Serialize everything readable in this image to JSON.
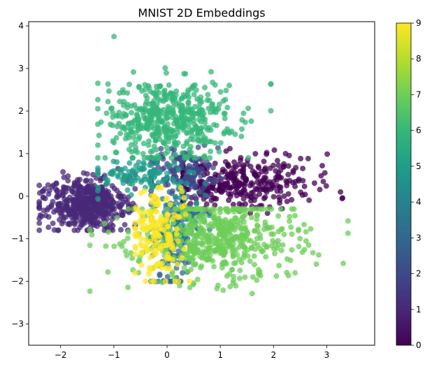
{
  "chart_data": [
    {
      "type": "scatter",
      "title": "MNIST 2D Embeddings",
      "xlabel": "",
      "ylabel": "",
      "xlim": [
        -2.6,
        3.9
      ],
      "ylim": [
        -3.5,
        4.1
      ],
      "xticks": [
        -2,
        -1,
        0,
        1,
        2,
        3
      ],
      "yticks": [
        -3,
        -2,
        -1,
        0,
        1,
        2,
        3,
        4
      ],
      "grid": false,
      "marker_alpha": 0.75,
      "colormap": "viridis",
      "clusters": [
        {
          "label": 0,
          "center": [
            1.2,
            0.3
          ],
          "spread": [
            0.75,
            0.3
          ],
          "approx_count": 700,
          "x_range": [
            0.3,
            3.6
          ],
          "y_range": [
            -0.4,
            1.25
          ]
        },
        {
          "label": 1,
          "center": [
            -1.5,
            -0.2
          ],
          "spread": [
            0.35,
            0.28
          ],
          "approx_count": 900,
          "x_range": [
            -2.4,
            -0.6
          ],
          "y_range": [
            -0.8,
            0.65
          ]
        },
        {
          "label": 2,
          "center": [
            0.3,
            0.6
          ],
          "spread": [
            0.35,
            0.25
          ],
          "approx_count": 250,
          "x_range": [
            -0.3,
            1.0
          ],
          "y_range": [
            0.0,
            1.2
          ]
        },
        {
          "label": 3,
          "center": [
            0.1,
            -1.0
          ],
          "spread": [
            0.2,
            0.5
          ],
          "approx_count": 250,
          "x_range": [
            -0.3,
            0.6
          ],
          "y_range": [
            -2.0,
            0.1
          ]
        },
        {
          "label": 4,
          "center": [
            0.3,
            -0.4
          ],
          "spread": [
            0.25,
            0.3
          ],
          "approx_count": 120,
          "x_range": [
            -0.2,
            0.8
          ],
          "y_range": [
            -1.0,
            0.3
          ]
        },
        {
          "label": 5,
          "center": [
            -0.5,
            0.5
          ],
          "spread": [
            0.4,
            0.2
          ],
          "approx_count": 200,
          "x_range": [
            -1.3,
            0.7
          ],
          "y_range": [
            -0.3,
            0.9
          ]
        },
        {
          "label": 6,
          "center": [
            0.0,
            1.8
          ],
          "spread": [
            0.55,
            0.45
          ],
          "approx_count": 900,
          "x_range": [
            -1.3,
            1.95
          ],
          "y_range": [
            0.9,
            3.75
          ]
        },
        {
          "label": 7,
          "center": [
            0.9,
            -1.0
          ],
          "spread": [
            0.75,
            0.45
          ],
          "approx_count": 1000,
          "x_range": [
            -1.45,
            3.4
          ],
          "y_range": [
            -3.2,
            -0.3
          ]
        },
        {
          "label": 9,
          "center": [
            -0.2,
            -0.9
          ],
          "spread": [
            0.25,
            0.45
          ],
          "approx_count": 300,
          "x_range": [
            -0.6,
            0.6
          ],
          "y_range": [
            -2.0,
            0.2
          ]
        }
      ],
      "colorbar": {
        "range": [
          0,
          9
        ],
        "ticks": [
          0,
          1,
          2,
          3,
          4,
          5,
          6,
          7,
          8,
          9
        ]
      }
    }
  ]
}
